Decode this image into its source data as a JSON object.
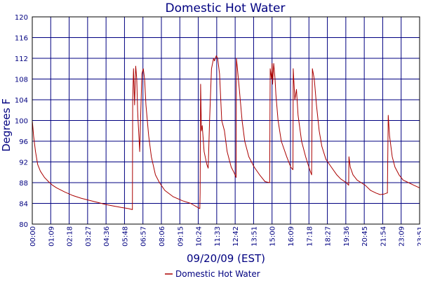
{
  "chart_data": {
    "type": "line",
    "title": "Domestic Hot Water",
    "xlabel": "09/20/09 (EST)",
    "ylabel": "Degrees F",
    "ylim": [
      80,
      120
    ],
    "yticks": [
      80,
      84,
      88,
      92,
      96,
      100,
      104,
      108,
      112,
      116,
      120
    ],
    "xlim": [
      "00:00",
      "23:51"
    ],
    "xtick_labels": [
      "00:00",
      "01:09",
      "02:18",
      "03:27",
      "04:36",
      "05:48",
      "06:57",
      "08:06",
      "09:15",
      "10:24",
      "11:33",
      "12:42",
      "13:51",
      "15:00",
      "16:09",
      "17:18",
      "18:27",
      "19:36",
      "20:45",
      "21:54",
      "23:09",
      "23:51"
    ],
    "grid": true,
    "legend": "bottom-center",
    "series_color": "#aa0000",
    "series": [
      {
        "name": "Domestic Hot Water",
        "points": [
          [
            "00:00",
            100
          ],
          [
            "00:05",
            97
          ],
          [
            "00:12",
            94
          ],
          [
            "00:20",
            91.5
          ],
          [
            "00:30",
            90.2
          ],
          [
            "00:45",
            89
          ],
          [
            "01:00",
            88.2
          ],
          [
            "01:15",
            87.5
          ],
          [
            "01:30",
            87
          ],
          [
            "02:00",
            86.2
          ],
          [
            "02:30",
            85.5
          ],
          [
            "03:00",
            85
          ],
          [
            "03:30",
            84.6
          ],
          [
            "04:00",
            84.2
          ],
          [
            "04:30",
            83.8
          ],
          [
            "05:00",
            83.5
          ],
          [
            "05:30",
            83.2
          ],
          [
            "05:55",
            83
          ],
          [
            "06:10",
            82.8
          ],
          [
            "06:11",
            104
          ],
          [
            "06:14",
            110
          ],
          [
            "06:18",
            103
          ],
          [
            "06:22",
            110.5
          ],
          [
            "06:26",
            108
          ],
          [
            "06:29",
            102
          ],
          [
            "06:31",
            100
          ],
          [
            "06:37",
            94
          ],
          [
            "06:40",
            100
          ],
          [
            "06:45",
            109
          ],
          [
            "06:50",
            110
          ],
          [
            "06:55",
            108
          ],
          [
            "07:00",
            103
          ],
          [
            "07:10",
            97
          ],
          [
            "07:20",
            93
          ],
          [
            "07:35",
            89.5
          ],
          [
            "07:50",
            88
          ],
          [
            "08:10",
            86.5
          ],
          [
            "08:40",
            85.3
          ],
          [
            "09:15",
            84.5
          ],
          [
            "09:45",
            84
          ],
          [
            "10:12",
            83.2
          ],
          [
            "10:19",
            83
          ],
          [
            "10:20",
            86
          ],
          [
            "10:22",
            107
          ],
          [
            "10:25",
            98
          ],
          [
            "10:28",
            99
          ],
          [
            "10:35",
            94
          ],
          [
            "10:45",
            91.5
          ],
          [
            "10:50",
            90.8
          ],
          [
            "10:55",
            100
          ],
          [
            "11:02",
            110
          ],
          [
            "11:10",
            112
          ],
          [
            "11:13",
            111.5
          ],
          [
            "11:20",
            112.5
          ],
          [
            "11:25",
            112
          ],
          [
            "11:32",
            109
          ],
          [
            "11:40",
            100
          ],
          [
            "11:50",
            98
          ],
          [
            "12:00",
            94
          ],
          [
            "12:15",
            91
          ],
          [
            "12:25",
            90
          ],
          [
            "12:33",
            89
          ],
          [
            "12:34",
            112
          ],
          [
            "12:38",
            110
          ],
          [
            "12:45",
            106
          ],
          [
            "12:55",
            100
          ],
          [
            "13:05",
            96
          ],
          [
            "13:20",
            93
          ],
          [
            "13:40",
            91
          ],
          [
            "14:00",
            89.5
          ],
          [
            "14:20",
            88.2
          ],
          [
            "14:37",
            88
          ],
          [
            "14:39",
            110
          ],
          [
            "14:44",
            108
          ],
          [
            "14:46",
            111
          ],
          [
            "14:48",
            107
          ],
          [
            "14:52",
            111
          ],
          [
            "14:57",
            108
          ],
          [
            "15:00",
            105
          ],
          [
            "15:08",
            100
          ],
          [
            "15:20",
            96
          ],
          [
            "15:40",
            93
          ],
          [
            "15:55",
            91
          ],
          [
            "16:03",
            90.5
          ],
          [
            "16:04",
            110
          ],
          [
            "16:10",
            104
          ],
          [
            "16:16",
            106
          ],
          [
            "16:22",
            101
          ],
          [
            "16:35",
            96
          ],
          [
            "16:50",
            93
          ],
          [
            "17:05",
            90.5
          ],
          [
            "17:12",
            89.5
          ],
          [
            "17:15",
            110
          ],
          [
            "17:22",
            108
          ],
          [
            "17:30",
            103
          ],
          [
            "17:40",
            98
          ],
          [
            "17:50",
            95
          ],
          [
            "18:05",
            92.5
          ],
          [
            "18:25",
            91
          ],
          [
            "18:45",
            89.5
          ],
          [
            "19:00",
            88.7
          ],
          [
            "19:20",
            88
          ],
          [
            "19:29",
            87.5
          ],
          [
            "19:30",
            93
          ],
          [
            "19:35",
            91
          ],
          [
            "19:45",
            89.5
          ],
          [
            "20:00",
            88.5
          ],
          [
            "20:15",
            88
          ],
          [
            "20:30",
            87.5
          ],
          [
            "20:50",
            86.5
          ],
          [
            "21:10",
            86
          ],
          [
            "21:25",
            85.7
          ],
          [
            "21:40",
            85.8
          ],
          [
            "21:50",
            86
          ],
          [
            "21:52",
            86
          ],
          [
            "21:55",
            101
          ],
          [
            "22:00",
            97
          ],
          [
            "22:10",
            93
          ],
          [
            "22:20",
            91
          ],
          [
            "22:35",
            89.5
          ],
          [
            "22:50",
            88.5
          ],
          [
            "23:10",
            88
          ],
          [
            "23:30",
            87.5
          ],
          [
            "23:51",
            87
          ]
        ]
      }
    ]
  }
}
